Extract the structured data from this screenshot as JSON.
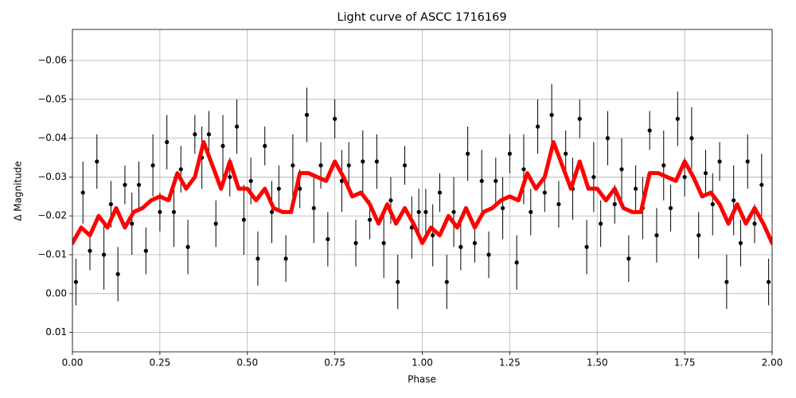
{
  "chart_data": {
    "type": "errorbar-line",
    "title": "Light curve of ASCC 1716169",
    "x_label": "Phase",
    "y_label": "Δ Magnitude",
    "xlim": [
      0,
      2
    ],
    "ylim": [
      0.015,
      -0.068
    ],
    "xticks": [
      {
        "value": 0,
        "label": "0.00"
      },
      0.25,
      {
        "value": 0.5,
        "label": "0.50"
      },
      0.75,
      {
        "value": 1,
        "label": "1.00"
      },
      1.25,
      {
        "value": 1.5,
        "label": "1.50"
      },
      1.75,
      {
        "value": 2,
        "label": "2.00"
      }
    ],
    "yticks": [
      {
        "value": -0.06,
        "label": "−0.06"
      },
      {
        "value": -0.05,
        "label": "−0.05"
      },
      {
        "value": -0.04,
        "label": "−0.04"
      },
      {
        "value": -0.03,
        "label": "−0.03"
      },
      {
        "value": -0.02,
        "label": "−0.02"
      },
      {
        "value": -0.01,
        "label": "−0.01"
      },
      {
        "value": 0,
        "label": "0.00"
      },
      0.01
    ],
    "grid": true,
    "series": [
      {
        "type": "errorbar",
        "color": "#000000",
        "x": [
          0.01,
          0.03,
          0.05,
          0.07,
          0.09,
          0.11,
          0.13,
          0.15,
          0.17,
          0.19,
          0.21,
          0.23,
          0.25,
          0.27,
          0.29,
          0.31,
          0.33,
          0.35,
          0.37,
          0.39,
          0.41,
          0.43,
          0.45,
          0.47,
          0.49,
          0.51,
          0.53,
          0.55,
          0.57,
          0.59,
          0.61,
          0.63,
          0.65,
          0.67,
          0.69,
          0.71,
          0.73,
          0.75,
          0.77,
          0.79,
          0.81,
          0.83,
          0.85,
          0.87,
          0.89,
          0.91,
          0.93,
          0.95,
          0.97,
          0.99,
          1.01,
          1.03,
          1.05,
          1.07,
          1.09,
          1.11,
          1.13,
          1.15,
          1.17,
          1.19,
          1.21,
          1.23,
          1.25,
          1.27,
          1.29,
          1.31,
          1.33,
          1.35,
          1.37,
          1.39,
          1.41,
          1.43,
          1.45,
          1.47,
          1.49,
          1.51,
          1.53,
          1.55,
          1.57,
          1.59,
          1.61,
          1.63,
          1.65,
          1.67,
          1.69,
          1.71,
          1.73,
          1.75,
          1.77,
          1.79,
          1.81,
          1.83,
          1.85,
          1.87,
          1.89,
          1.91,
          1.93,
          1.95,
          1.97,
          1.99
        ],
        "values": [
          -0.003,
          -0.026,
          -0.011,
          -0.034,
          -0.01,
          -0.023,
          -0.005,
          -0.028,
          -0.018,
          -0.028,
          -0.011,
          -0.033,
          -0.021,
          -0.039,
          -0.021,
          -0.032,
          -0.012,
          -0.041,
          -0.035,
          -0.041,
          -0.018,
          -0.038,
          -0.03,
          -0.043,
          -0.019,
          -0.029,
          -0.009,
          -0.038,
          -0.021,
          -0.027,
          -0.009,
          -0.033,
          -0.027,
          -0.046,
          -0.022,
          -0.033,
          -0.014,
          -0.045,
          -0.029,
          -0.033,
          -0.013,
          -0.034,
          -0.019,
          -0.034,
          -0.013,
          -0.024,
          -0.003,
          -0.033,
          -0.017,
          -0.021,
          -0.021,
          -0.015,
          -0.026,
          -0.003,
          -0.021,
          -0.012,
          -0.036,
          -0.013,
          -0.029,
          -0.01,
          -0.029,
          -0.022,
          -0.036,
          -0.008,
          -0.032,
          -0.021,
          -0.043,
          -0.026,
          -0.046,
          -0.023,
          -0.036,
          -0.027,
          -0.045,
          -0.012,
          -0.03,
          -0.018,
          -0.04,
          -0.023,
          -0.032,
          -0.009,
          -0.027,
          -0.022,
          -0.042,
          -0.015,
          -0.033,
          -0.022,
          -0.045,
          -0.03,
          -0.04,
          -0.015,
          -0.031,
          -0.023,
          -0.034,
          -0.003,
          -0.024,
          -0.013,
          -0.034,
          -0.018,
          -0.028,
          -0.003
        ],
        "errors": [
          0.006,
          0.008,
          0.005,
          0.007,
          0.009,
          0.006,
          0.007,
          0.005,
          0.008,
          0.006,
          0.006,
          0.008,
          0.005,
          0.007,
          0.009,
          0.006,
          0.007,
          0.005,
          0.008,
          0.006,
          0.006,
          0.008,
          0.005,
          0.007,
          0.009,
          0.006,
          0.007,
          0.005,
          0.008,
          0.006,
          0.006,
          0.008,
          0.005,
          0.007,
          0.009,
          0.006,
          0.007,
          0.005,
          0.008,
          0.006,
          0.006,
          0.008,
          0.005,
          0.007,
          0.009,
          0.006,
          0.007,
          0.005,
          0.008,
          0.006,
          0.006,
          0.008,
          0.005,
          0.007,
          0.009,
          0.006,
          0.007,
          0.005,
          0.008,
          0.006,
          0.006,
          0.008,
          0.005,
          0.007,
          0.009,
          0.006,
          0.007,
          0.005,
          0.008,
          0.006,
          0.006,
          0.008,
          0.005,
          0.007,
          0.009,
          0.006,
          0.007,
          0.005,
          0.008,
          0.006,
          0.006,
          0.008,
          0.005,
          0.007,
          0.009,
          0.006,
          0.007,
          0.005,
          0.008,
          0.006,
          0.006,
          0.008,
          0.005,
          0.007,
          0.009,
          0.006,
          0.007,
          0.005,
          0.008,
          0.006
        ]
      },
      {
        "type": "line",
        "color": "#ff0000",
        "x": [
          0,
          0.025,
          0.05,
          0.075,
          0.1,
          0.125,
          0.15,
          0.175,
          0.2,
          0.225,
          0.25,
          0.275,
          0.3,
          0.325,
          0.35,
          0.375,
          0.4,
          0.425,
          0.45,
          0.475,
          0.5,
          0.525,
          0.55,
          0.575,
          0.6,
          0.625,
          0.65,
          0.675,
          0.7,
          0.725,
          0.75,
          0.775,
          0.8,
          0.825,
          0.85,
          0.875,
          0.9,
          0.925,
          0.95,
          0.975,
          1,
          1.025,
          1.05,
          1.075,
          1.1,
          1.125,
          1.15,
          1.175,
          1.2,
          1.225,
          1.25,
          1.275,
          1.3,
          1.325,
          1.35,
          1.375,
          1.4,
          1.425,
          1.45,
          1.475,
          1.5,
          1.525,
          1.55,
          1.575,
          1.6,
          1.625,
          1.65,
          1.675,
          1.7,
          1.725,
          1.75,
          1.775,
          1.8,
          1.825,
          1.85,
          1.875,
          1.9,
          1.925,
          1.95,
          1.975,
          2
        ],
        "values": [
          -0.013,
          -0.017,
          -0.015,
          -0.02,
          -0.017,
          -0.022,
          -0.017,
          -0.021,
          -0.022,
          -0.024,
          -0.025,
          -0.024,
          -0.031,
          -0.027,
          -0.03,
          -0.039,
          -0.033,
          -0.027,
          -0.034,
          -0.027,
          -0.027,
          -0.024,
          -0.027,
          -0.022,
          -0.021,
          -0.021,
          -0.031,
          -0.031,
          -0.03,
          -0.029,
          -0.034,
          -0.03,
          -0.025,
          -0.026,
          -0.023,
          -0.018,
          -0.023,
          -0.018,
          -0.022,
          -0.018,
          -0.013,
          -0.017,
          -0.015,
          -0.02,
          -0.017,
          -0.022,
          -0.017,
          -0.021,
          -0.022,
          -0.024,
          -0.025,
          -0.024,
          -0.031,
          -0.027,
          -0.03,
          -0.039,
          -0.033,
          -0.027,
          -0.034,
          -0.027,
          -0.027,
          -0.024,
          -0.027,
          -0.022,
          -0.021,
          -0.021,
          -0.031,
          -0.031,
          -0.03,
          -0.029,
          -0.034,
          -0.03,
          -0.025,
          -0.026,
          -0.023,
          -0.018,
          -0.023,
          -0.018,
          -0.022,
          -0.018,
          -0.013
        ]
      }
    ]
  }
}
